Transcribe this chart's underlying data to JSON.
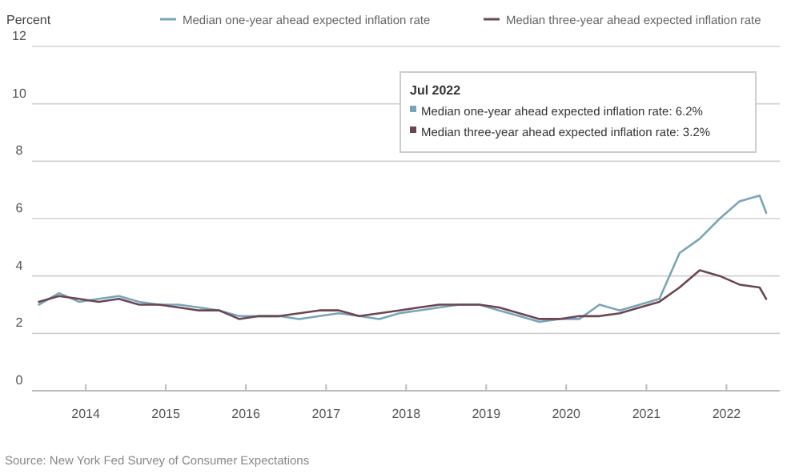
{
  "chart_data": {
    "type": "line",
    "ylabel": "Percent",
    "xlim": [
      "2013-05",
      "2022-09"
    ],
    "xticks": [
      "2014",
      "2015",
      "2016",
      "2017",
      "2018",
      "2019",
      "2020",
      "2021",
      "2022"
    ],
    "ylim": [
      0,
      12
    ],
    "yticks": [
      0,
      2,
      4,
      6,
      8,
      10,
      12
    ],
    "grid": "y",
    "legend": "top",
    "marker": "none",
    "line_style": "solid",
    "annotations": [
      "Jul 2022",
      "Median one-year ahead expected inflation rate: 6.2%",
      "Median three-year ahead expected inflation rate: 3.2%",
      "Source: New York Fed Survey of Consumer Expectations"
    ],
    "x": [
      "2013-06",
      "2013-09",
      "2013-12",
      "2014-03",
      "2014-06",
      "2014-09",
      "2014-12",
      "2015-03",
      "2015-06",
      "2015-09",
      "2015-12",
      "2016-03",
      "2016-06",
      "2016-09",
      "2016-12",
      "2017-03",
      "2017-06",
      "2017-09",
      "2017-12",
      "2018-03",
      "2018-06",
      "2018-09",
      "2018-12",
      "2019-03",
      "2019-06",
      "2019-09",
      "2019-12",
      "2020-03",
      "2020-06",
      "2020-09",
      "2020-12",
      "2021-03",
      "2021-06",
      "2021-09",
      "2021-12",
      "2022-03",
      "2022-06",
      "2022-07"
    ],
    "series": [
      {
        "name": "Median one-year ahead expected inflation rate",
        "color": "#7aa4b8",
        "values": [
          3.0,
          3.4,
          3.1,
          3.2,
          3.3,
          3.1,
          3.0,
          3.0,
          2.9,
          2.8,
          2.6,
          2.6,
          2.6,
          2.5,
          2.6,
          2.7,
          2.6,
          2.5,
          2.7,
          2.8,
          2.9,
          3.0,
          3.0,
          2.8,
          2.6,
          2.4,
          2.5,
          2.5,
          3.0,
          2.8,
          3.0,
          3.2,
          4.8,
          5.3,
          6.0,
          6.6,
          6.8,
          6.2
        ]
      },
      {
        "name": "Median three-year ahead expected inflation rate",
        "color": "#6b4652",
        "values": [
          3.1,
          3.3,
          3.2,
          3.1,
          3.2,
          3.0,
          3.0,
          2.9,
          2.8,
          2.8,
          2.5,
          2.6,
          2.6,
          2.7,
          2.8,
          2.8,
          2.6,
          2.7,
          2.8,
          2.9,
          3.0,
          3.0,
          3.0,
          2.9,
          2.7,
          2.5,
          2.5,
          2.6,
          2.6,
          2.7,
          2.9,
          3.1,
          3.6,
          4.2,
          4.0,
          3.7,
          3.6,
          3.2
        ]
      }
    ]
  }
}
